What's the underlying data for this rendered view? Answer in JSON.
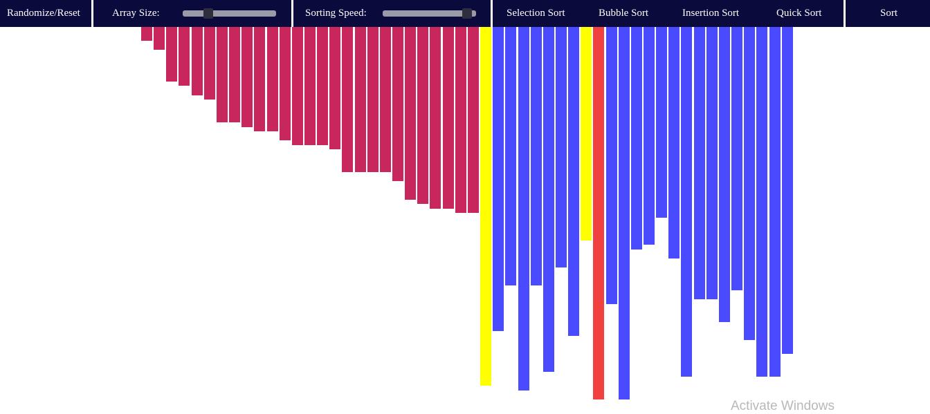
{
  "navbar": {
    "randomize_label": "Randomize/Reset",
    "array_size_label": "Array Size:",
    "array_size_value": 0.25,
    "sorting_speed_label": "Sorting Speed:",
    "sorting_speed_value": 0.95,
    "algorithms": [
      "Selection Sort",
      "Bubble Sort",
      "Insertion Sort",
      "Quick Sort"
    ],
    "sort_label": "Sort"
  },
  "colors": {
    "navbar_bg": "#0a0a3c",
    "sorted": "#c8275e",
    "unsorted": "#4a4aff",
    "compare": "#ffff00",
    "pivot": "#f04040"
  },
  "bars": [
    {
      "value": 20,
      "state": "sorted"
    },
    {
      "value": 33,
      "state": "sorted"
    },
    {
      "value": 79,
      "state": "sorted"
    },
    {
      "value": 85,
      "state": "sorted"
    },
    {
      "value": 99,
      "state": "sorted"
    },
    {
      "value": 105,
      "state": "sorted"
    },
    {
      "value": 138,
      "state": "sorted"
    },
    {
      "value": 138,
      "state": "sorted"
    },
    {
      "value": 145,
      "state": "sorted"
    },
    {
      "value": 151,
      "state": "sorted"
    },
    {
      "value": 151,
      "state": "sorted"
    },
    {
      "value": 164,
      "state": "sorted"
    },
    {
      "value": 171,
      "state": "sorted"
    },
    {
      "value": 171,
      "state": "sorted"
    },
    {
      "value": 171,
      "state": "sorted"
    },
    {
      "value": 177,
      "state": "sorted"
    },
    {
      "value": 210,
      "state": "sorted"
    },
    {
      "value": 210,
      "state": "sorted"
    },
    {
      "value": 210,
      "state": "sorted"
    },
    {
      "value": 210,
      "state": "sorted"
    },
    {
      "value": 223,
      "state": "sorted"
    },
    {
      "value": 250,
      "state": "sorted"
    },
    {
      "value": 256,
      "state": "sorted"
    },
    {
      "value": 263,
      "state": "sorted"
    },
    {
      "value": 263,
      "state": "sorted"
    },
    {
      "value": 269,
      "state": "sorted"
    },
    {
      "value": 269,
      "state": "sorted"
    },
    {
      "value": 519,
      "state": "compare"
    },
    {
      "value": 440,
      "state": "unsorted"
    },
    {
      "value": 374,
      "state": "unsorted"
    },
    {
      "value": 526,
      "state": "unsorted"
    },
    {
      "value": 374,
      "state": "unsorted"
    },
    {
      "value": 499,
      "state": "unsorted"
    },
    {
      "value": 348,
      "state": "unsorted"
    },
    {
      "value": 447,
      "state": "unsorted"
    },
    {
      "value": 309,
      "state": "compare"
    },
    {
      "value": 539,
      "state": "pivot"
    },
    {
      "value": 401,
      "state": "unsorted"
    },
    {
      "value": 539,
      "state": "unsorted"
    },
    {
      "value": 322,
      "state": "unsorted"
    },
    {
      "value": 315,
      "state": "unsorted"
    },
    {
      "value": 276,
      "state": "unsorted"
    },
    {
      "value": 335,
      "state": "unsorted"
    },
    {
      "value": 506,
      "state": "unsorted"
    },
    {
      "value": 394,
      "state": "unsorted"
    },
    {
      "value": 394,
      "state": "unsorted"
    },
    {
      "value": 427,
      "state": "unsorted"
    },
    {
      "value": 381,
      "state": "unsorted"
    },
    {
      "value": 453,
      "state": "unsorted"
    },
    {
      "value": 506,
      "state": "unsorted"
    },
    {
      "value": 506,
      "state": "unsorted"
    },
    {
      "value": 473,
      "state": "unsorted"
    }
  ],
  "watermark": "Activate Windows"
}
